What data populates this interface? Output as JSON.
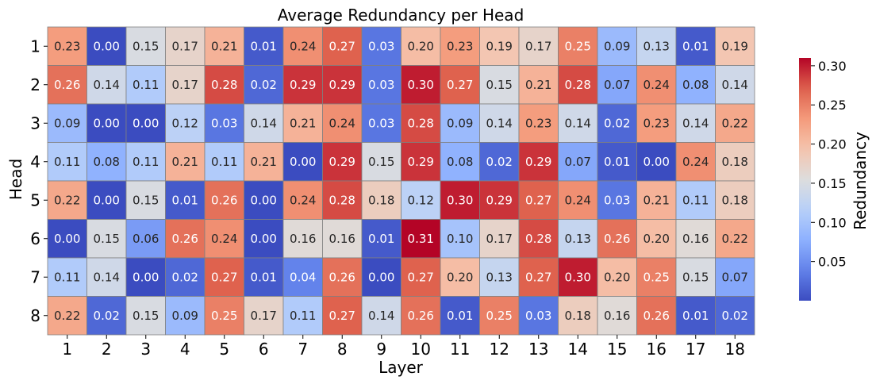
{
  "chart_data": {
    "type": "heatmap",
    "title": "Average Redundancy per Head",
    "xlabel": "Layer",
    "ylabel": "Head",
    "x": [
      "1",
      "2",
      "3",
      "4",
      "5",
      "6",
      "7",
      "8",
      "9",
      "10",
      "11",
      "12",
      "13",
      "14",
      "15",
      "16",
      "17",
      "18"
    ],
    "y": [
      "1",
      "2",
      "3",
      "4",
      "5",
      "6",
      "7",
      "8"
    ],
    "values": [
      [
        0.23,
        0.0,
        0.15,
        0.17,
        0.21,
        0.01,
        0.24,
        0.27,
        0.03,
        0.2,
        0.23,
        0.19,
        0.17,
        0.25,
        0.09,
        0.13,
        0.01,
        0.19
      ],
      [
        0.26,
        0.14,
        0.11,
        0.17,
        0.28,
        0.02,
        0.29,
        0.29,
        0.03,
        0.3,
        0.27,
        0.15,
        0.21,
        0.28,
        0.07,
        0.24,
        0.08,
        0.14
      ],
      [
        0.09,
        0.0,
        0.0,
        0.12,
        0.03,
        0.14,
        0.21,
        0.24,
        0.03,
        0.28,
        0.09,
        0.14,
        0.23,
        0.14,
        0.02,
        0.23,
        0.14,
        0.22
      ],
      [
        0.11,
        0.08,
        0.11,
        0.21,
        0.11,
        0.21,
        0.0,
        0.29,
        0.15,
        0.29,
        0.08,
        0.02,
        0.29,
        0.07,
        0.01,
        0.0,
        0.24,
        0.18
      ],
      [
        0.22,
        0.0,
        0.15,
        0.01,
        0.26,
        0.0,
        0.24,
        0.28,
        0.18,
        0.12,
        0.3,
        0.29,
        0.27,
        0.24,
        0.03,
        0.21,
        0.11,
        0.18
      ],
      [
        0.0,
        0.15,
        0.06,
        0.26,
        0.24,
        0.0,
        0.16,
        0.16,
        0.01,
        0.31,
        0.1,
        0.17,
        0.28,
        0.13,
        0.26,
        0.2,
        0.16,
        0.22
      ],
      [
        0.11,
        0.14,
        0.0,
        0.02,
        0.27,
        0.01,
        0.04,
        0.26,
        0.0,
        0.27,
        0.2,
        0.13,
        0.27,
        0.3,
        0.2,
        0.25,
        0.15,
        0.07
      ],
      [
        0.22,
        0.02,
        0.15,
        0.09,
        0.25,
        0.17,
        0.11,
        0.27,
        0.14,
        0.26,
        0.01,
        0.25,
        0.03,
        0.18,
        0.16,
        0.26,
        0.01,
        0.02
      ]
    ],
    "colormap": "coolwarm",
    "vmin": 0.0,
    "vmax": 0.31,
    "colorbar": {
      "label": "Redundancy",
      "ticks": [
        0.05,
        0.1,
        0.15,
        0.2,
        0.25,
        0.3
      ],
      "tick_labels": [
        "0.05",
        "0.10",
        "0.15",
        "0.20",
        "0.25",
        "0.30"
      ]
    },
    "annotations": true,
    "annotation_format": "2 decimals",
    "cell_border_color": "#808080"
  }
}
